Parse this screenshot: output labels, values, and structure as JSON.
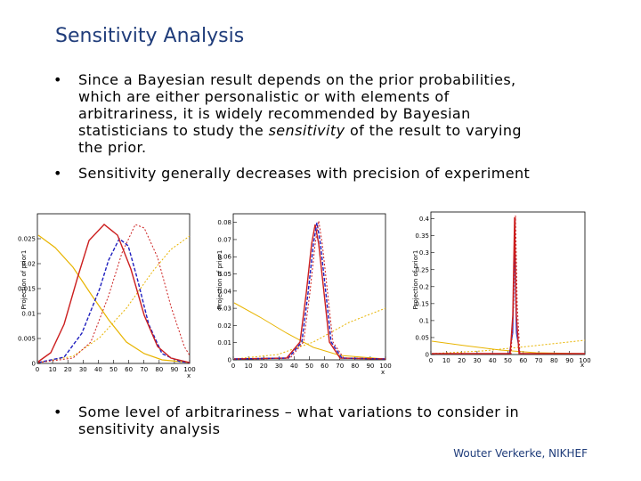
{
  "slide": {
    "title": "Sensitivity Analysis",
    "bullets": [
      {
        "lines": [
          "Since a Bayesian result depends on the prior probabilities,",
          "which are either personalistic or with elements of",
          "arbitrariness, it is widely recommended by Bayesian",
          "statisticians to study the ",
          "sensitivity",
          " of the result to varying",
          "the prior."
        ]
      },
      {
        "text": "Sensitivity generally decreases with precision of experiment"
      },
      {
        "text1": "Some level of arbitrariness – what variations to consider in",
        "text2": "sensitivity analysis"
      }
    ],
    "bullet_char": "•",
    "footer": "Wouter Verkerke, NIKHEF"
  },
  "chart_data": [
    {
      "type": "line",
      "ylabel": "Projection of prior1",
      "xlabel": "x",
      "xlim": [
        0,
        100
      ],
      "ylim": [
        0,
        0.03
      ],
      "xticks": [
        "0",
        "10",
        "20",
        "30",
        "40",
        "50",
        "60",
        "70",
        "80",
        "90",
        "100"
      ],
      "yticks": [
        "0",
        "0.005",
        "0.01",
        "0.015",
        "0.02",
        "0.025"
      ],
      "series_colors": [
        "#e8b400",
        "#e8b400",
        "#1f1fbf",
        "#cc1f1f",
        "#cc1f1f"
      ]
    },
    {
      "type": "line",
      "ylabel": "Projection of prior1",
      "xlabel": "x",
      "xlim": [
        0,
        100
      ],
      "ylim": [
        0,
        0.085
      ],
      "xticks": [
        "0",
        "10",
        "20",
        "30",
        "40",
        "50",
        "60",
        "70",
        "80",
        "90",
        "100"
      ],
      "yticks": [
        "0",
        "0.01",
        "0.02",
        "0.03",
        "0.04",
        "0.05",
        "0.06",
        "0.07",
        "0.08"
      ]
    },
    {
      "type": "line",
      "ylabel": "Projection of prior1",
      "xlabel": "x",
      "xlim": [
        0,
        100
      ],
      "ylim": [
        0,
        0.42
      ],
      "xticks": [
        "0",
        "10",
        "20",
        "30",
        "40",
        "50",
        "60",
        "70",
        "80",
        "90",
        "100"
      ],
      "yticks": [
        "0",
        "0.05",
        "0.1",
        "0.15",
        "0.2",
        "0.25",
        "0.3",
        "0.35",
        "0.4"
      ]
    }
  ]
}
